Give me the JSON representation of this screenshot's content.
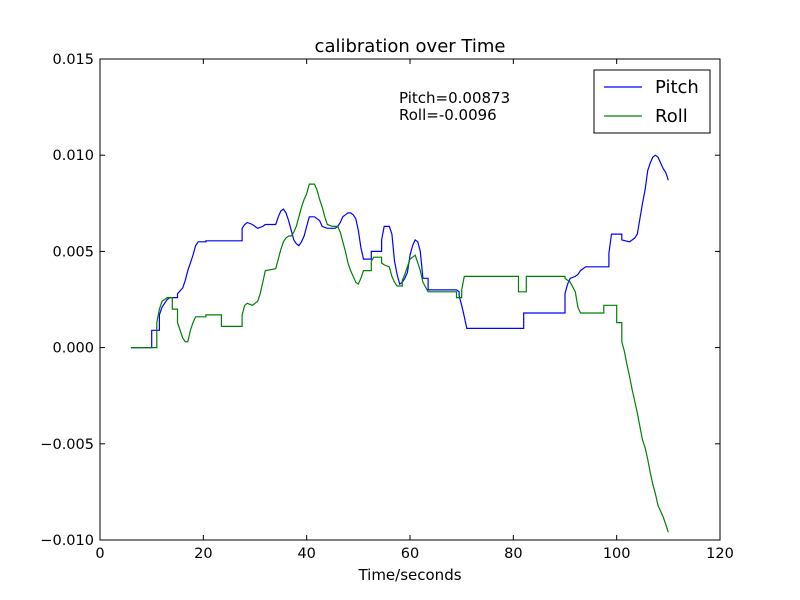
{
  "chart_data": {
    "type": "line",
    "title": "calibration over Time",
    "xlabel": "Time/seconds",
    "ylabel": "",
    "xlim": [
      0,
      120
    ],
    "ylim": [
      -0.01,
      0.015
    ],
    "xticks": [
      0,
      20,
      40,
      60,
      80,
      100,
      120
    ],
    "xtick_labels": [
      "0",
      "20",
      "40",
      "60",
      "80",
      "100",
      "120"
    ],
    "yticks": [
      -0.01,
      -0.005,
      0.0,
      0.005,
      0.01,
      0.015
    ],
    "ytick_labels": [
      "−0.010",
      "−0.005",
      "0.000",
      "0.005",
      "0.010",
      "0.015"
    ],
    "grid": false,
    "legend_position": "top-right",
    "annotations": [
      "Pitch=0.00873",
      "Roll=-0.0096"
    ],
    "series": [
      {
        "name": "Pitch",
        "color": "#0000ff",
        "points": [
          [
            6,
            0
          ],
          [
            10,
            0
          ],
          [
            10,
            0.0009
          ],
          [
            11.5,
            0.0009
          ],
          [
            11.5,
            0.0017
          ],
          [
            12,
            0.0021
          ],
          [
            12.5,
            0.0023
          ],
          [
            13,
            0.0025
          ],
          [
            13.5,
            0.0026
          ],
          [
            15,
            0.0026
          ],
          [
            15,
            0.0028
          ],
          [
            16,
            0.0031
          ],
          [
            16.5,
            0.0035
          ],
          [
            17,
            0.004
          ],
          [
            17.5,
            0.0044
          ],
          [
            18,
            0.0048
          ],
          [
            18.5,
            0.0053
          ],
          [
            19,
            0.0055
          ],
          [
            20.5,
            0.0055
          ],
          [
            20.5,
            0.00555
          ],
          [
            27,
            0.00555
          ],
          [
            27.5,
            0.00555
          ],
          [
            27.5,
            0.0062
          ],
          [
            28,
            0.0064
          ],
          [
            28.5,
            0.0065
          ],
          [
            29.5,
            0.0064
          ],
          [
            30,
            0.0063
          ],
          [
            30.5,
            0.0062
          ],
          [
            31.5,
            0.0063
          ],
          [
            32,
            0.0064
          ],
          [
            34,
            0.0064
          ],
          [
            34.5,
            0.0068
          ],
          [
            35,
            0.0071
          ],
          [
            35.5,
            0.0072
          ],
          [
            36,
            0.007
          ],
          [
            36.5,
            0.0066
          ],
          [
            37,
            0.0061
          ],
          [
            37.5,
            0.0056
          ],
          [
            38,
            0.0054
          ],
          [
            38.5,
            0.0053
          ],
          [
            39,
            0.0055
          ],
          [
            39.5,
            0.0058
          ],
          [
            40,
            0.0063
          ],
          [
            40.5,
            0.0068
          ],
          [
            41.5,
            0.0068
          ],
          [
            42,
            0.0067
          ],
          [
            42.5,
            0.0066
          ],
          [
            43,
            0.0063
          ],
          [
            44,
            0.0062
          ],
          [
            45.5,
            0.0062
          ],
          [
            46,
            0.0063
          ],
          [
            46.5,
            0.0065
          ],
          [
            47,
            0.0068
          ],
          [
            47.5,
            0.0069
          ],
          [
            48,
            0.007
          ],
          [
            48.5,
            0.007
          ],
          [
            49,
            0.0069
          ],
          [
            49.5,
            0.0067
          ],
          [
            50,
            0.0061
          ],
          [
            50.5,
            0.0052
          ],
          [
            51,
            0.0046
          ],
          [
            52.5,
            0.0046
          ],
          [
            52.5,
            0.005
          ],
          [
            54.5,
            0.005
          ],
          [
            54.5,
            0.0056
          ],
          [
            55,
            0.0063
          ],
          [
            56,
            0.0063
          ],
          [
            56.5,
            0.0059
          ],
          [
            57,
            0.0045
          ],
          [
            57.5,
            0.0038
          ],
          [
            58,
            0.0033
          ],
          [
            58.5,
            0.0034
          ],
          [
            59,
            0.0036
          ],
          [
            59.5,
            0.0039
          ],
          [
            60,
            0.0048
          ],
          [
            60.5,
            0.0053
          ],
          [
            61,
            0.0056
          ],
          [
            61.5,
            0.0055
          ],
          [
            62,
            0.005
          ],
          [
            62.5,
            0.0036
          ],
          [
            63.5,
            0.0036
          ],
          [
            63.5,
            0.003
          ],
          [
            69,
            0.003
          ],
          [
            69.5,
            0.0029
          ],
          [
            69.5,
            0.0027
          ],
          [
            70,
            0.0022
          ],
          [
            70.5,
            0.0016
          ],
          [
            71,
            0.001
          ],
          [
            82,
            0.001
          ],
          [
            82,
            0.0018
          ],
          [
            90,
            0.0018
          ],
          [
            90,
            0.0028
          ],
          [
            90.5,
            0.0033
          ],
          [
            91,
            0.0036
          ],
          [
            92,
            0.0037
          ],
          [
            92.5,
            0.0038
          ],
          [
            93,
            0.004
          ],
          [
            94,
            0.0042
          ],
          [
            98.5,
            0.0042
          ],
          [
            98.5,
            0.0049
          ],
          [
            99,
            0.0059
          ],
          [
            101,
            0.0059
          ],
          [
            101,
            0.0056
          ],
          [
            102.5,
            0.0055
          ],
          [
            103.5,
            0.0057
          ],
          [
            104,
            0.0059
          ],
          [
            104.5,
            0.0067
          ],
          [
            105,
            0.0075
          ],
          [
            105.5,
            0.0082
          ],
          [
            106,
            0.0092
          ],
          [
            106.5,
            0.0096
          ],
          [
            107,
            0.0099
          ],
          [
            107.5,
            0.01
          ],
          [
            108,
            0.0099
          ],
          [
            108.5,
            0.0096
          ],
          [
            109,
            0.0093
          ],
          [
            109.5,
            0.0091
          ],
          [
            110,
            0.0087
          ]
        ]
      },
      {
        "name": "Roll",
        "color": "#008000",
        "points": [
          [
            6,
            0
          ],
          [
            11,
            0
          ],
          [
            11,
            0.0013
          ],
          [
            11.5,
            0.002
          ],
          [
            12,
            0.0024
          ],
          [
            13,
            0.0026
          ],
          [
            14,
            0.0026
          ],
          [
            14,
            0.002
          ],
          [
            15,
            0.002
          ],
          [
            15,
            0.0013
          ],
          [
            16,
            0.0005
          ],
          [
            16.5,
            0.0003
          ],
          [
            17,
            0.0003
          ],
          [
            17.5,
            0.0009
          ],
          [
            18,
            0.0013
          ],
          [
            18.5,
            0.0016
          ],
          [
            20.5,
            0.0016
          ],
          [
            20.5,
            0.0017
          ],
          [
            23.5,
            0.0017
          ],
          [
            23.5,
            0.0011
          ],
          [
            27,
            0.0011
          ],
          [
            27.5,
            0.0011
          ],
          [
            27.5,
            0.0017
          ],
          [
            28,
            0.0022
          ],
          [
            28.5,
            0.0023
          ],
          [
            29.5,
            0.0022
          ],
          [
            30,
            0.0023
          ],
          [
            30.5,
            0.0024
          ],
          [
            31,
            0.0028
          ],
          [
            31.5,
            0.0034
          ],
          [
            32,
            0.004
          ],
          [
            34,
            0.0041
          ],
          [
            34.5,
            0.0046
          ],
          [
            35,
            0.0051
          ],
          [
            35.5,
            0.0055
          ],
          [
            36,
            0.0057
          ],
          [
            36.5,
            0.0058
          ],
          [
            37,
            0.0058
          ],
          [
            37.5,
            0.006
          ],
          [
            38,
            0.0063
          ],
          [
            38.5,
            0.0068
          ],
          [
            39,
            0.0073
          ],
          [
            39.5,
            0.0077
          ],
          [
            40,
            0.008
          ],
          [
            40.5,
            0.0085
          ],
          [
            41.5,
            0.0085
          ],
          [
            42,
            0.0082
          ],
          [
            42.5,
            0.0077
          ],
          [
            43,
            0.0073
          ],
          [
            43.5,
            0.0068
          ],
          [
            44,
            0.0064
          ],
          [
            45,
            0.0063
          ],
          [
            46,
            0.0063
          ],
          [
            46.5,
            0.006
          ],
          [
            47,
            0.0055
          ],
          [
            47.5,
            0.005
          ],
          [
            48,
            0.0044
          ],
          [
            48.5,
            0.004
          ],
          [
            49,
            0.0037
          ],
          [
            49.5,
            0.0034
          ],
          [
            50,
            0.0033
          ],
          [
            50.5,
            0.0036
          ],
          [
            51,
            0.004
          ],
          [
            52.5,
            0.004
          ],
          [
            52.5,
            0.0045
          ],
          [
            53,
            0.0047
          ],
          [
            54.5,
            0.0047
          ],
          [
            54.5,
            0.0044
          ],
          [
            55,
            0.0043
          ],
          [
            56,
            0.0042
          ],
          [
            56.5,
            0.0037
          ],
          [
            57,
            0.0034
          ],
          [
            57.5,
            0.0032
          ],
          [
            58.5,
            0.0032
          ],
          [
            58.5,
            0.0035
          ],
          [
            59,
            0.0038
          ],
          [
            59.5,
            0.0042
          ],
          [
            60,
            0.0046
          ],
          [
            61,
            0.0048
          ],
          [
            61.5,
            0.0044
          ],
          [
            62,
            0.004
          ],
          [
            62.5,
            0.0034
          ],
          [
            63.5,
            0.0029
          ],
          [
            69,
            0.0029
          ],
          [
            69,
            0.0026
          ],
          [
            70,
            0.0026
          ],
          [
            70,
            0.003
          ],
          [
            70.5,
            0.0037
          ],
          [
            81,
            0.0037
          ],
          [
            81,
            0.0029
          ],
          [
            82.5,
            0.0029
          ],
          [
            82.5,
            0.0037
          ],
          [
            90,
            0.0037
          ],
          [
            90,
            0.0036
          ],
          [
            91,
            0.0034
          ],
          [
            92,
            0.0029
          ],
          [
            92.5,
            0.0021
          ],
          [
            93,
            0.0018
          ],
          [
            95,
            0.0018
          ],
          [
            97.5,
            0.0018
          ],
          [
            97.5,
            0.0022
          ],
          [
            100,
            0.0022
          ],
          [
            100,
            0.0013
          ],
          [
            101,
            0.0013
          ],
          [
            101,
            0.0003
          ],
          [
            101.5,
            -0.0002
          ],
          [
            102,
            -0.0009
          ],
          [
            102.5,
            -0.0015
          ],
          [
            103,
            -0.0022
          ],
          [
            103.5,
            -0.0028
          ],
          [
            104,
            -0.0034
          ],
          [
            104.5,
            -0.0041
          ],
          [
            105,
            -0.0048
          ],
          [
            105.5,
            -0.0052
          ],
          [
            106,
            -0.0058
          ],
          [
            106.5,
            -0.0065
          ],
          [
            107,
            -0.0071
          ],
          [
            107.5,
            -0.0076
          ],
          [
            108,
            -0.0082
          ],
          [
            108.5,
            -0.0085
          ],
          [
            109,
            -0.0088
          ],
          [
            109.5,
            -0.0092
          ],
          [
            110,
            -0.0096
          ]
        ]
      }
    ]
  }
}
